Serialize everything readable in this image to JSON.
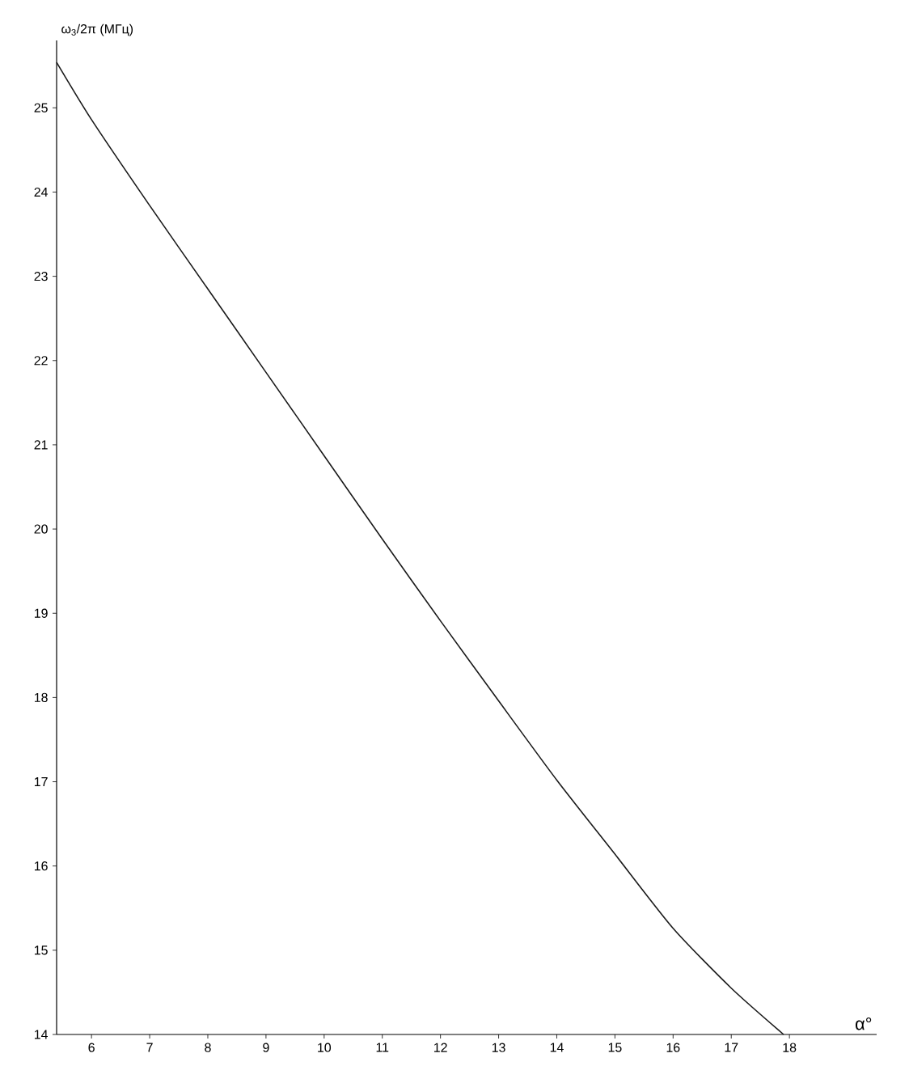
{
  "chart_data": {
    "type": "line",
    "xlabel": "α°",
    "ylabel": "ω$_{3}$/2π (МГц)",
    "x": [
      5.4,
      6,
      7,
      8,
      9,
      10,
      11,
      12,
      13,
      14,
      15,
      16,
      17,
      17.9
    ],
    "series": [
      {
        "color": "#1a1a1a",
        "values": [
          25.54,
          24.86,
          23.84,
          22.85,
          21.86,
          20.87,
          19.88,
          18.91,
          17.96,
          17.02,
          16.14,
          15.26,
          14.55,
          14.0
        ]
      }
    ],
    "xlim": [
      5.4,
      19.5
    ],
    "ylim": [
      14,
      25.8
    ],
    "xticks": [
      6,
      7,
      8,
      9,
      10,
      11,
      12,
      13,
      14,
      15,
      16,
      17,
      18
    ],
    "yticks": [
      14,
      15,
      16,
      17,
      18,
      19,
      20,
      21,
      22,
      23,
      24,
      25
    ],
    "grid": false,
    "marker": "none",
    "line_style": "solid"
  }
}
